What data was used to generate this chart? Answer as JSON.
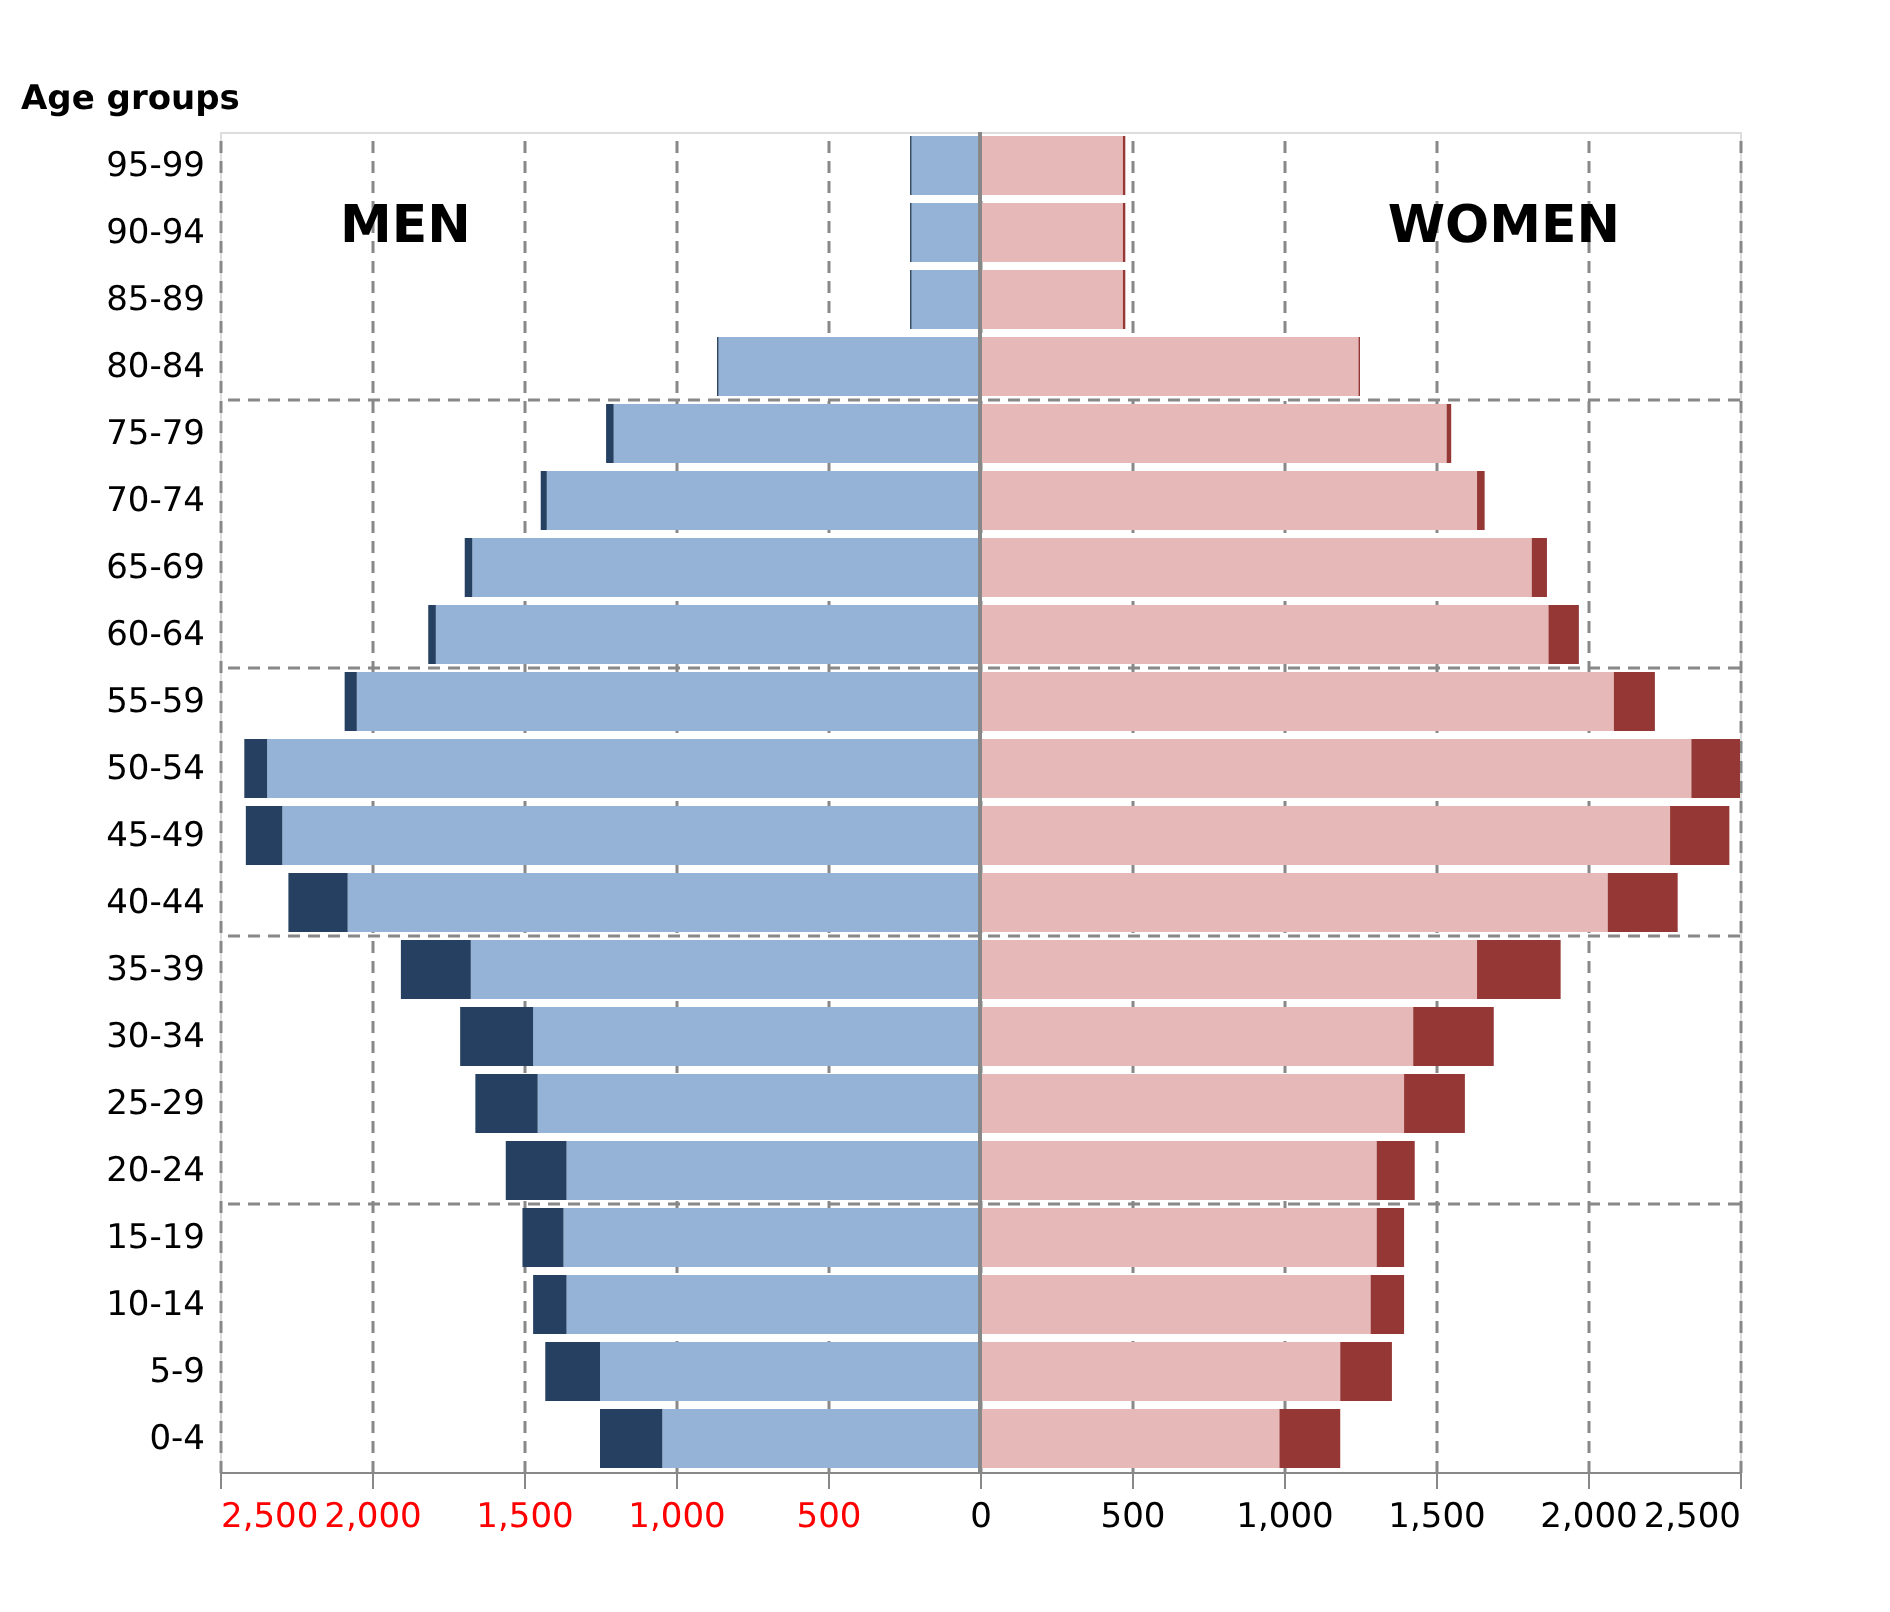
{
  "chart_data": {
    "type": "bar",
    "orientation": "horizontal",
    "stacked": true,
    "ylabel": "Age groups",
    "annotations": [
      "MEN",
      "WOMEN"
    ],
    "categories": [
      "95-99",
      "90-94",
      "85-89",
      "80-84",
      "75-79",
      "70-74",
      "65-69",
      "60-64",
      "55-59",
      "50-54",
      "45-49",
      "40-44",
      "35-39",
      "30-34",
      "25-29",
      "20-24",
      "15-19",
      "10-14",
      "5-9",
      "0-4"
    ],
    "series": [
      {
        "color": "#95b3d7",
        "values": [
          -225,
          -225,
          -225,
          -860,
          -1205,
          -1425,
          -1670,
          -1790,
          -2050,
          -2345,
          -2295,
          -2080,
          -1675,
          -1470,
          -1455,
          -1360,
          -1370,
          -1360,
          -1250,
          -1045
        ]
      },
      {
        "color": "#254061",
        "values": [
          -5,
          -5,
          -5,
          -5,
          -25,
          -20,
          -25,
          -25,
          -40,
          -75,
          -120,
          -195,
          -230,
          -240,
          -205,
          -200,
          -135,
          -110,
          -180,
          -205
        ]
      },
      {
        "color": "#e6b9b8",
        "values": [
          470,
          470,
          470,
          1245,
          1535,
          1635,
          1815,
          1870,
          2085,
          2340,
          2270,
          2065,
          1635,
          1425,
          1395,
          1305,
          1305,
          1285,
          1185,
          985
        ]
      },
      {
        "color": "#953735",
        "values": [
          8,
          8,
          8,
          5,
          15,
          25,
          50,
          100,
          135,
          160,
          195,
          230,
          275,
          265,
          200,
          125,
          90,
          110,
          170,
          200
        ]
      }
    ],
    "xlim": [
      -2500,
      2500
    ],
    "xticks": [
      {
        "value": -2500,
        "label": "2,500"
      },
      {
        "value": -2000,
        "label": "2,000"
      },
      {
        "value": -1500,
        "label": "1,500"
      },
      {
        "value": -1000,
        "label": "1,000"
      },
      {
        "value": -500,
        "label": "500"
      },
      0,
      500,
      {
        "value": 1000,
        "label": "1,000"
      },
      {
        "value": 1500,
        "label": "1,500"
      },
      {
        "value": 2000,
        "label": "2,000"
      },
      {
        "value": 2500,
        "label": "2,500"
      }
    ],
    "grid": true,
    "legend": false
  }
}
